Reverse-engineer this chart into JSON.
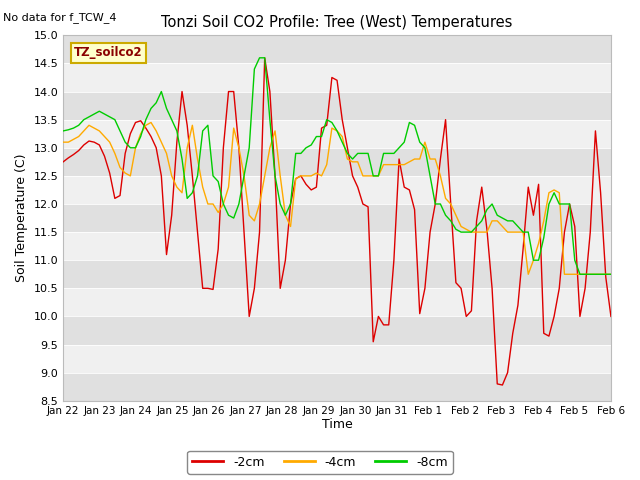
{
  "title": "Tonzi Soil CO2 Profile: Tree (West) Temperatures",
  "subtitle": "No data for f_TCW_4",
  "ylabel": "Soil Temperature (C)",
  "xlabel": "Time",
  "ylim": [
    8.5,
    15.0
  ],
  "yticks": [
    8.5,
    9.0,
    9.5,
    10.0,
    10.5,
    11.0,
    11.5,
    12.0,
    12.5,
    13.0,
    13.5,
    14.0,
    14.5,
    15.0
  ],
  "legend_label": "TZ_soilco2",
  "line_labels": [
    "-2cm",
    "-4cm",
    "-8cm"
  ],
  "line_colors": [
    "#dd0000",
    "#ffaa00",
    "#00cc00"
  ],
  "fig_bg": "#ffffff",
  "plot_bg": "#ffffff",
  "band_color_dark": "#e0e0e0",
  "band_color_light": "#f0f0f0",
  "x_tick_labels": [
    "Jan 22",
    "Jan 23",
    "Jan 24",
    "Jan 25",
    "Jan 26",
    "Jan 27",
    "Jan 28",
    "Jan 29",
    "Jan 30",
    "Jan 31",
    "Feb 1",
    "Feb 2",
    "Feb 3",
    "Feb 4",
    "Feb 5",
    "Feb 6"
  ],
  "red_2cm": [
    12.75,
    12.82,
    12.88,
    12.95,
    13.05,
    13.12,
    13.1,
    13.05,
    12.85,
    12.55,
    12.1,
    12.15,
    12.9,
    13.25,
    13.45,
    13.48,
    13.35,
    13.2,
    13.0,
    12.5,
    11.1,
    11.8,
    13.1,
    14.0,
    13.4,
    12.5,
    11.5,
    10.5,
    10.5,
    10.48,
    11.2,
    13.0,
    14.0,
    14.0,
    13.0,
    11.5,
    10.0,
    10.5,
    11.5,
    14.6,
    14.0,
    12.5,
    10.5,
    11.0,
    12.0,
    12.45,
    12.5,
    12.35,
    12.25,
    12.3,
    13.35,
    13.4,
    14.25,
    14.2,
    13.5,
    13.0,
    12.5,
    12.3,
    12.0,
    11.95,
    9.55,
    10.0,
    9.85,
    9.85,
    11.0,
    12.8,
    12.3,
    12.25,
    11.9,
    10.05,
    10.5,
    11.5,
    12.0,
    12.8,
    13.5,
    12.0,
    10.6,
    10.5,
    10.0,
    10.1,
    11.7,
    12.3,
    11.55,
    10.5,
    8.8,
    8.78,
    9.0,
    9.7,
    10.2,
    11.2,
    12.3,
    11.8,
    12.35,
    9.7,
    9.65,
    10.0,
    10.5,
    11.5,
    12.0,
    11.6,
    10.0,
    10.5,
    11.5,
    13.3,
    12.2,
    10.7,
    10.0
  ],
  "orange_4cm": [
    13.1,
    13.1,
    13.15,
    13.2,
    13.3,
    13.4,
    13.35,
    13.3,
    13.2,
    13.1,
    12.9,
    12.65,
    12.55,
    12.5,
    13.0,
    13.25,
    13.4,
    13.45,
    13.3,
    13.1,
    12.9,
    12.5,
    12.3,
    12.2,
    13.0,
    13.4,
    12.8,
    12.3,
    12.0,
    12.0,
    11.85,
    12.0,
    12.3,
    13.35,
    13.0,
    12.5,
    11.8,
    11.7,
    12.0,
    12.5,
    13.0,
    13.3,
    12.5,
    11.8,
    11.6,
    12.45,
    12.5,
    12.5,
    12.5,
    12.55,
    12.5,
    12.7,
    13.35,
    13.3,
    13.2,
    12.8,
    12.75,
    12.75,
    12.5,
    12.5,
    12.5,
    12.5,
    12.7,
    12.7,
    12.7,
    12.7,
    12.7,
    12.75,
    12.8,
    12.8,
    13.1,
    12.8,
    12.8,
    12.5,
    12.1,
    12.0,
    11.8,
    11.6,
    11.55,
    11.5,
    11.5,
    11.5,
    11.5,
    11.7,
    11.7,
    11.6,
    11.5,
    11.5,
    11.5,
    11.5,
    10.75,
    11.0,
    11.3,
    11.7,
    12.2,
    12.25,
    12.2,
    10.75,
    10.75,
    10.75,
    10.75,
    10.75,
    10.75,
    10.75,
    10.75,
    10.75,
    10.75
  ],
  "green_8cm": [
    13.3,
    13.32,
    13.35,
    13.4,
    13.5,
    13.55,
    13.6,
    13.65,
    13.6,
    13.55,
    13.5,
    13.3,
    13.1,
    13.0,
    13.0,
    13.2,
    13.5,
    13.7,
    13.8,
    14.0,
    13.7,
    13.5,
    13.3,
    12.8,
    12.1,
    12.2,
    12.5,
    13.3,
    13.4,
    12.5,
    12.4,
    12.0,
    11.8,
    11.75,
    12.0,
    12.5,
    13.0,
    14.4,
    14.6,
    14.6,
    13.5,
    12.5,
    12.0,
    11.8,
    12.0,
    12.9,
    12.9,
    13.0,
    13.05,
    13.2,
    13.2,
    13.5,
    13.45,
    13.3,
    13.1,
    12.9,
    12.8,
    12.9,
    12.9,
    12.9,
    12.5,
    12.5,
    12.9,
    12.9,
    12.9,
    13.0,
    13.1,
    13.45,
    13.4,
    13.1,
    13.0,
    12.5,
    12.0,
    12.0,
    11.8,
    11.7,
    11.55,
    11.5,
    11.5,
    11.5,
    11.6,
    11.7,
    11.9,
    12.0,
    11.8,
    11.75,
    11.7,
    11.7,
    11.6,
    11.5,
    11.5,
    11.0,
    11.0,
    11.4,
    12.0,
    12.2,
    12.0,
    12.0,
    12.0,
    11.0,
    10.75,
    10.75,
    10.75,
    10.75,
    10.75,
    10.75,
    10.75
  ]
}
